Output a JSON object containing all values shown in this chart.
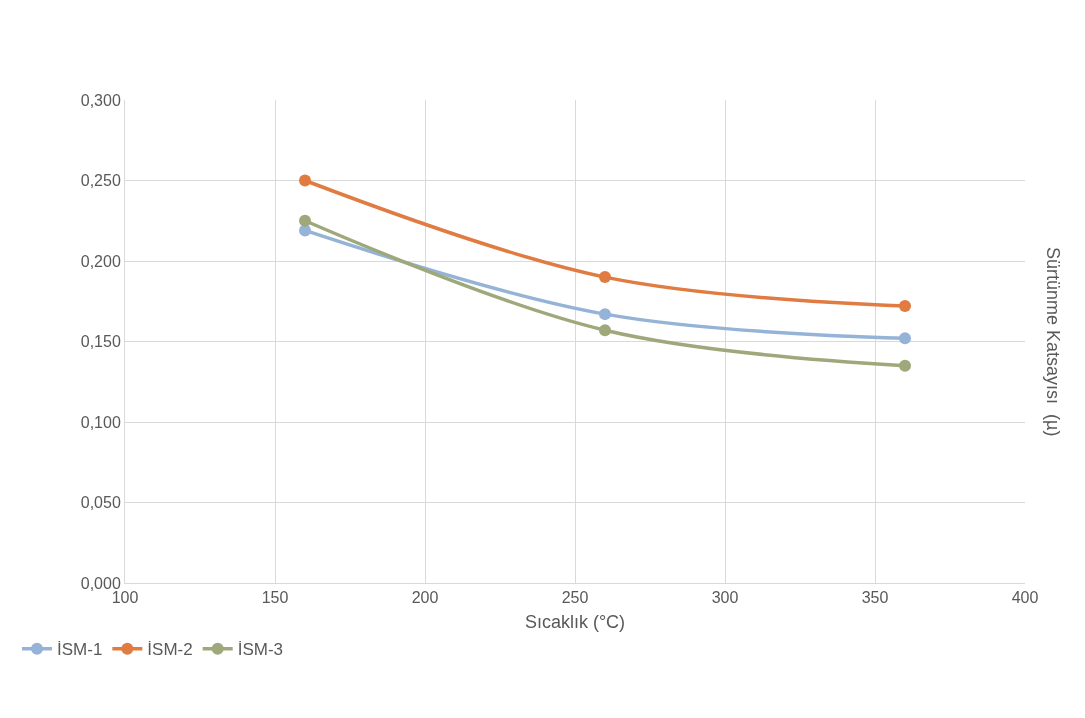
{
  "chart_data": {
    "type": "line",
    "xlabel": "Sıcaklık (°C)",
    "ylabel": "Sürtünme Katsayısı  (µ)",
    "x": [
      160,
      260,
      360
    ],
    "series": [
      {
        "name": "İSM-1",
        "color": "#95b3d7",
        "values": [
          0.219,
          0.167,
          0.152
        ]
      },
      {
        "name": "İSM-2",
        "color": "#e07b42",
        "values": [
          0.25,
          0.19,
          0.172
        ]
      },
      {
        "name": "İSM-3",
        "color": "#9ea87a",
        "values": [
          0.225,
          0.157,
          0.135
        ]
      }
    ],
    "xlim": [
      100,
      400
    ],
    "xticks": [
      100,
      150,
      200,
      250,
      300,
      350,
      400
    ],
    "ylim": [
      0,
      0.3
    ],
    "yticks": [
      {
        "value": 0,
        "label": "0,000"
      },
      {
        "value": 0.05,
        "label": "0,050"
      },
      {
        "value": 0.1,
        "label": "0,100"
      },
      {
        "value": 0.15,
        "label": "0,150"
      },
      {
        "value": 0.2,
        "label": "0,200"
      },
      {
        "value": 0.25,
        "label": "0,250"
      },
      {
        "value": 0.3,
        "label": "0,300"
      }
    ],
    "grid": true,
    "legend": "bottom left",
    "marker": "circle",
    "line_style": "solid"
  }
}
